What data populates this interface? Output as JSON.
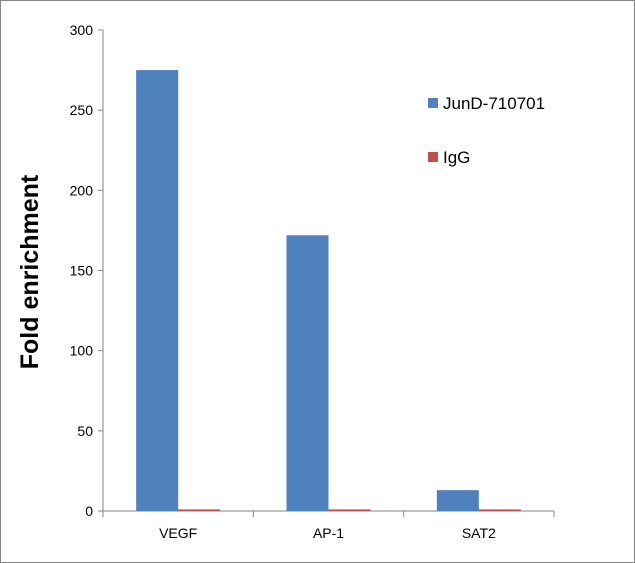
{
  "chart_data": {
    "type": "bar",
    "categories": [
      "VEGF",
      "AP-1",
      "SAT2"
    ],
    "series": [
      {
        "name": "JunD-710701",
        "values": [
          275,
          172,
          13
        ],
        "color": "#4F81BD"
      },
      {
        "name": "IgG",
        "values": [
          1,
          1,
          1
        ],
        "color": "#C0504D"
      }
    ],
    "xlabel": "",
    "ylabel": "Fold enrichment",
    "ylim": [
      0,
      300
    ],
    "yticks": [
      "0",
      "50",
      "100",
      "150",
      "200",
      "250",
      "300"
    ],
    "grid": false,
    "legend_position": "right"
  }
}
